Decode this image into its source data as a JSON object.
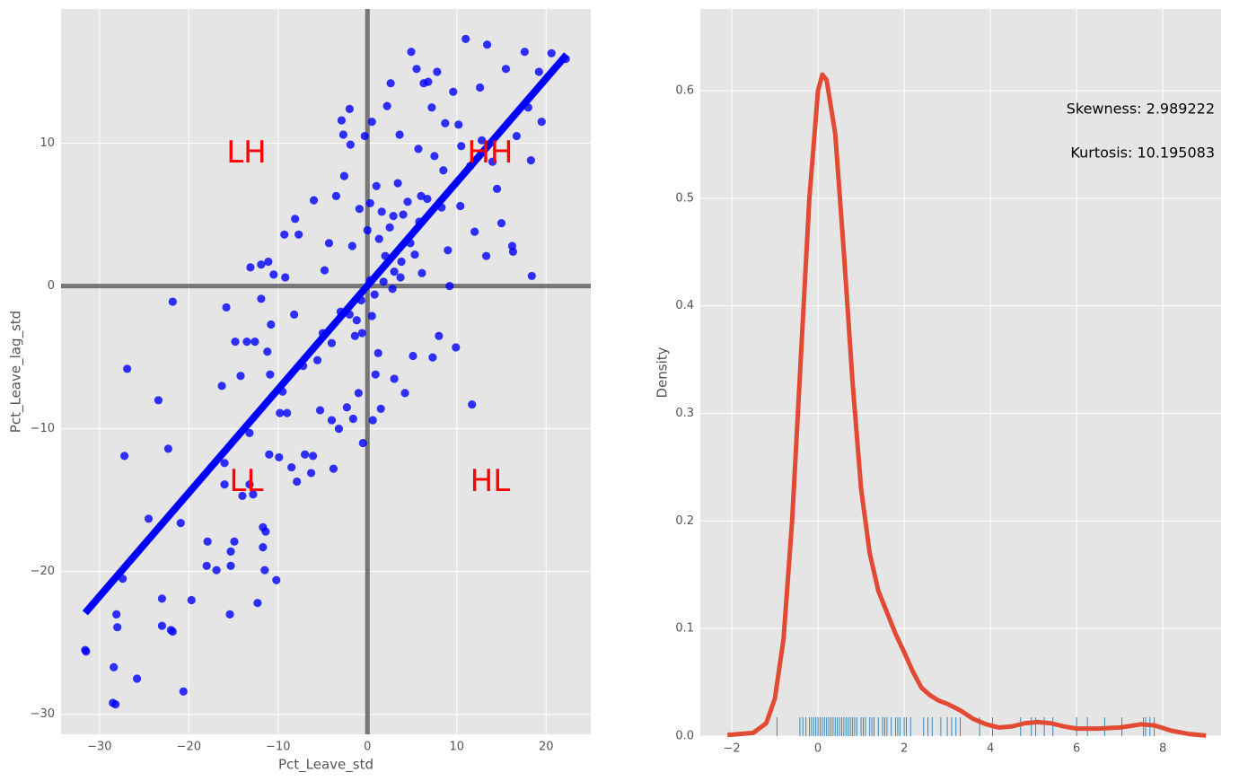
{
  "chart_data": [
    {
      "type": "scatter",
      "xlabel": "Pct_Leave_std",
      "ylabel": "Pct_Leave_lag_std",
      "xlim": [
        -34.3,
        25.0
      ],
      "ylim": [
        -31.4,
        19.4
      ],
      "xticks": [
        {
          "value": -30,
          "label": "−30"
        },
        {
          "value": -20,
          "label": "−20"
        },
        {
          "value": -10,
          "label": "−10"
        },
        0,
        10,
        20
      ],
      "yticks": [
        {
          "value": -30,
          "label": "−30"
        },
        {
          "value": -20,
          "label": "−20"
        },
        {
          "value": -10,
          "label": "−10"
        },
        0,
        10
      ],
      "grid": true,
      "color": "#0000ff",
      "x": [
        -31.6,
        -31.5,
        -28.5,
        -28.2,
        -28.4,
        -25.8,
        -20.6,
        -28.1,
        -28,
        -27.4,
        -27.2,
        -26.9,
        -24.5,
        -23.4,
        -23,
        -23,
        -22.3,
        -22,
        -21.8,
        -21.8,
        -20.9,
        -19.7,
        -17.9,
        -18,
        -16.9,
        -16.3,
        -16,
        -16,
        -15.8,
        -15.4,
        -15.3,
        -15.3,
        -14.9,
        -14.8,
        -14.2,
        -14,
        -13.5,
        -13.2,
        -13.2,
        -13.1,
        -12.8,
        -12.6,
        -12.3,
        -11.9,
        -11.9,
        -11.7,
        -11.7,
        -11.5,
        -11.4,
        -11.2,
        -11.1,
        -11,
        -10.9,
        -10.8,
        -10.5,
        -10.2,
        -9.9,
        -9.8,
        -9.5,
        -9.3,
        -9.2,
        -9,
        -8.5,
        -8.2,
        -8.1,
        -7.9,
        -7.7,
        -7.2,
        -7,
        -6.3,
        -6.1,
        -6,
        -5.6,
        -5.3,
        -5,
        -4.8,
        -4.3,
        -4,
        -3.8,
        -3.5,
        -3.2,
        -2.9,
        -2.7,
        -2.6,
        -2.3,
        -2,
        -1.9,
        -1.7,
        -1.6,
        -1.4,
        -1,
        -0.9,
        -0.7,
        -0.6,
        -0.5,
        -0.3,
        0,
        0.3,
        0.5,
        0.5,
        0.6,
        0.9,
        1,
        1.2,
        1.5,
        1.6,
        2,
        2.2,
        2.6,
        2.8,
        3,
        3.4,
        3.6,
        3.8,
        4.2,
        4.8,
        4.9,
        5.1,
        5.5,
        5.7,
        6.1,
        6.3,
        6.8,
        7.2,
        7.3,
        7.8,
        8,
        8.3,
        8.7,
        9.2,
        9.6,
        9.9,
        10.4,
        11,
        11.7,
        12,
        12.6,
        13.3,
        13.4,
        14,
        14.5,
        15,
        15.5,
        16.2,
        16.3,
        16.7,
        17.6,
        18,
        18.3,
        18.4,
        19.2,
        19.5,
        20.6,
        22.2,
        0.3,
        1.3,
        2.5,
        -2,
        4,
        6,
        8.5,
        10.5,
        3,
        -4,
        1.8,
        2.9,
        4.5,
        5.3,
        6.7,
        7.5,
        9,
        10.2,
        11.5,
        12.8,
        0.8,
        -1.2,
        -3,
        3.7,
        5.8
      ],
      "values": [
        -25.5,
        -25.6,
        -29.2,
        -29.3,
        -26.7,
        -27.5,
        -28.4,
        -23,
        -23.9,
        -20.5,
        -11.9,
        -5.8,
        -16.3,
        -8,
        -21.9,
        -23.8,
        -11.4,
        -24.1,
        -24.2,
        -1.1,
        -16.6,
        -22,
        -17.9,
        -19.6,
        -19.9,
        -7,
        -12.4,
        -13.9,
        -1.5,
        -23,
        -18.6,
        -19.6,
        -17.9,
        -3.9,
        -6.3,
        -14.7,
        -3.9,
        -10.3,
        -13.9,
        1.3,
        -14.6,
        -3.9,
        -22.2,
        1.5,
        -0.9,
        -16.9,
        -18.3,
        -19.9,
        -17.2,
        -4.6,
        1.7,
        -11.8,
        -6.2,
        -2.7,
        0.8,
        -20.6,
        -12,
        -8.9,
        -7.4,
        3.6,
        0.6,
        -8.9,
        -12.7,
        -2,
        4.7,
        -13.7,
        3.6,
        -5.6,
        -11.8,
        -13.1,
        -11.9,
        6,
        -5.2,
        -8.7,
        -3.3,
        1.1,
        3,
        -9.4,
        -12.8,
        6.3,
        -10,
        11.6,
        10.6,
        7.7,
        -8.5,
        12.4,
        9.9,
        2.8,
        -9.3,
        -3.5,
        -7.5,
        5.4,
        -1,
        -3.3,
        -11,
        10.5,
        3.9,
        5.8,
        -2.1,
        11.5,
        -9.4,
        -6.2,
        7,
        -4.7,
        -8.6,
        5.2,
        2.1,
        12.6,
        14.2,
        -0.2,
        -6.5,
        7.2,
        10.6,
        1.7,
        -7.5,
        3,
        16.4,
        -4.9,
        15.2,
        9.6,
        0.9,
        14.2,
        14.3,
        12.5,
        -5,
        15,
        -3.5,
        5.5,
        11.4,
        0,
        13.6,
        -4.3,
        5.6,
        17.3,
        -8.3,
        3.8,
        13.9,
        2.1,
        16.9,
        8.7,
        6.8,
        4.4,
        15.2,
        2.8,
        2.4,
        10.5,
        16.4,
        12.5,
        8.8,
        0.7,
        15,
        11.5,
        16.3,
        15.9,
        0.4,
        3.3,
        4.1,
        -2,
        5,
        6.3,
        8.1,
        9.8,
        1,
        -4,
        0.3,
        4.9,
        5.9,
        2.2,
        6.1,
        9.1,
        2.5,
        11.3,
        8.4,
        10.2,
        -0.6,
        -2.4,
        -1.8,
        0.6,
        4.5
      ],
      "fit": {
        "x": [
          -31.6,
          22.3
        ],
        "values": [
          -22.9,
          16.2
        ],
        "color": "#0000ff"
      },
      "hlines": [
        0
      ],
      "vlines": [
        0
      ],
      "annotations": [
        "LH",
        "HH",
        "LL",
        "HL"
      ]
    },
    {
      "type": "kde",
      "ylabel": "Density",
      "xlim": [
        -2.73,
        9.35
      ],
      "ylim": [
        0,
        0.676
      ],
      "xticks": [
        {
          "value": -2,
          "label": "−2"
        },
        0,
        2,
        4,
        6,
        8
      ],
      "yticks": [
        {
          "value": 0,
          "label": "0.0"
        },
        0.1,
        0.2,
        0.3,
        0.4,
        0.5,
        0.6
      ],
      "grid": true,
      "color": "#e24a33",
      "x": [
        -2.1,
        -1.5,
        -1.2,
        -1.0,
        -0.8,
        -0.6,
        -0.4,
        -0.2,
        0,
        0.1,
        0.2,
        0.4,
        0.6,
        0.8,
        1.0,
        1.2,
        1.4,
        1.6,
        1.8,
        2.0,
        2.2,
        2.4,
        2.6,
        2.8,
        3.0,
        3.3,
        3.6,
        3.9,
        4.2,
        4.5,
        4.8,
        5.1,
        5.4,
        5.7,
        6.0,
        6.5,
        7.0,
        7.5,
        7.8,
        8.2,
        8.6,
        9.0
      ],
      "values": [
        0.001,
        0.003,
        0.012,
        0.035,
        0.09,
        0.2,
        0.35,
        0.5,
        0.6,
        0.615,
        0.61,
        0.56,
        0.45,
        0.33,
        0.23,
        0.17,
        0.135,
        0.115,
        0.095,
        0.078,
        0.06,
        0.045,
        0.038,
        0.033,
        0.03,
        0.024,
        0.016,
        0.011,
        0.008,
        0.009,
        0.012,
        0.013,
        0.012,
        0.009,
        0.007,
        0.007,
        0.008,
        0.011,
        0.01,
        0.005,
        0.002,
        0.0005
      ],
      "rug": {
        "color": "#348abd",
        "values": [
          -0.95,
          -0.42,
          -0.35,
          -0.28,
          -0.2,
          -0.15,
          -0.1,
          -0.05,
          0,
          0.05,
          0.1,
          0.15,
          0.2,
          0.25,
          0.3,
          0.35,
          0.4,
          0.45,
          0.5,
          0.55,
          0.6,
          0.65,
          0.7,
          0.75,
          0.8,
          0.85,
          0.9,
          1.0,
          1.05,
          1.1,
          1.2,
          1.25,
          1.3,
          1.4,
          1.5,
          1.55,
          1.6,
          1.7,
          1.8,
          1.85,
          1.9,
          2.0,
          2.05,
          2.15,
          2.45,
          2.55,
          2.65,
          2.85,
          3.0,
          3.1,
          3.2,
          3.3,
          3.75,
          4.05,
          4.7,
          4.95,
          5.05,
          5.25,
          5.45,
          6.0,
          6.25,
          6.65,
          7.05,
          7.55,
          7.6,
          7.7,
          7.8
        ]
      },
      "annotations": [
        "Skewness: 2.989222",
        "Kurtosis: 10.195083"
      ]
    }
  ]
}
